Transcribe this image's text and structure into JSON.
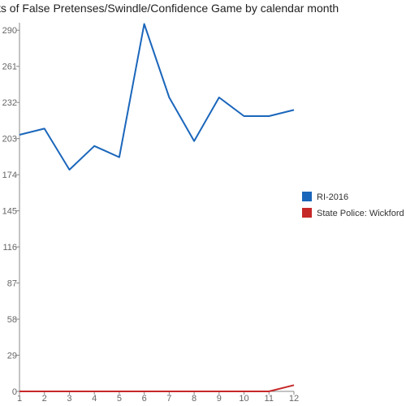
{
  "chart_data": {
    "type": "line",
    "title": "ts of False Pretenses/Swindle/Confidence Game by calendar month",
    "x": [
      1,
      2,
      3,
      4,
      5,
      6,
      7,
      8,
      9,
      10,
      11,
      12
    ],
    "y_ticks": [
      0,
      29,
      58,
      87,
      116,
      145,
      174,
      203,
      232,
      261,
      290
    ],
    "ylim": [
      0,
      296
    ],
    "grid": false,
    "legend_position": "right",
    "series": [
      {
        "name": "RI-2016",
        "color": "#1a66bb",
        "values": [
          206,
          211,
          178,
          197,
          188,
          295,
          236,
          201,
          236,
          221,
          221,
          226
        ]
      },
      {
        "name": "State Police: Wickford",
        "color": "#c62828",
        "values": [
          0,
          0,
          0,
          0,
          0,
          0,
          0,
          0,
          0,
          0,
          0,
          5
        ]
      }
    ]
  }
}
